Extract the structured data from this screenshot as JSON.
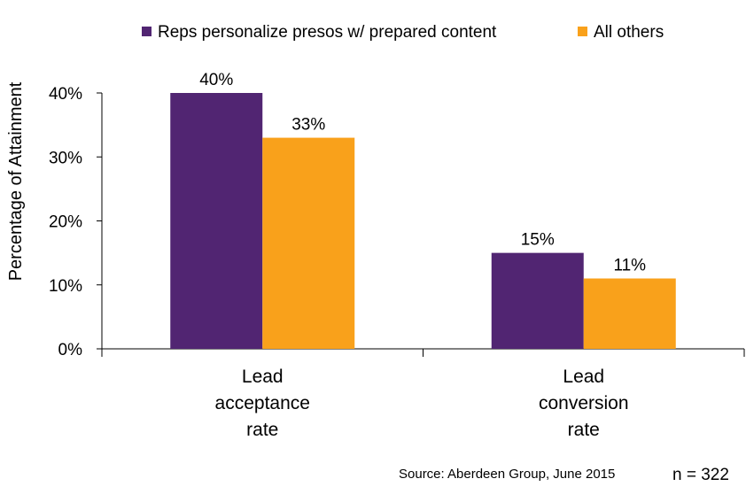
{
  "chart_data": {
    "type": "bar",
    "categories": [
      [
        "Lead",
        "acceptance",
        "rate"
      ],
      [
        "Lead",
        "conversion",
        "rate"
      ]
    ],
    "series": [
      {
        "name": "Reps personalize presos w/ prepared content",
        "values": [
          40,
          15
        ],
        "color": "#512572"
      },
      {
        "name": "All others",
        "values": [
          33,
          11
        ],
        "color": "#F9A11B"
      }
    ],
    "data_labels": [
      [
        "40%",
        "15%"
      ],
      [
        "33%",
        "11%"
      ]
    ],
    "ylim": [
      0,
      40
    ],
    "yticks": [
      0,
      10,
      20,
      30,
      40
    ],
    "ytick_labels": [
      "0%",
      "10%",
      "20%",
      "30%",
      "40%"
    ],
    "ylabel": "Percentage of Attainment",
    "xlabel": "",
    "title": "",
    "legend_position": "top",
    "grid": false
  },
  "footer": {
    "source": "Source: Aberdeen Group, June 2015",
    "sample": "n = 322"
  }
}
